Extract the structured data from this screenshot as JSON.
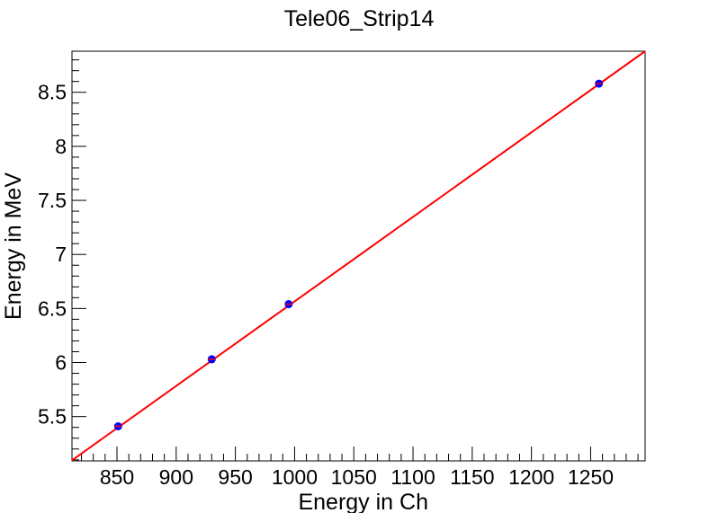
{
  "chart_data": {
    "type": "scatter",
    "title": "Tele06_Strip14",
    "xlabel": "Energy in Ch",
    "ylabel": "Energy in MeV",
    "xlim": [
      812,
      1296
    ],
    "ylim": [
      5.09,
      8.88
    ],
    "x_ticks": [
      850,
      900,
      950,
      1000,
      1050,
      1100,
      1150,
      1200,
      1250
    ],
    "y_ticks": [
      5.5,
      6,
      6.5,
      7,
      7.5,
      8,
      8.5
    ],
    "x_tick_labels": [
      "850",
      "900",
      "950",
      "1000",
      "1050",
      "1100",
      "1150",
      "1200",
      "1250"
    ],
    "y_tick_labels": [
      "5.5",
      "6",
      "6.5",
      "7",
      "7.5",
      "8",
      "8.5"
    ],
    "grid": false,
    "series": [
      {
        "marker_color": "#0000ff",
        "points": [
          {
            "x": 851,
            "y": 5.41
          },
          {
            "x": 930,
            "y": 6.03
          },
          {
            "x": 995,
            "y": 6.54
          },
          {
            "x": 1257,
            "y": 8.58
          }
        ]
      }
    ],
    "fit_line": {
      "color": "#ff0000",
      "points": [
        {
          "x": 812,
          "y": 5.095
        },
        {
          "x": 1296,
          "y": 8.88
        }
      ]
    }
  }
}
